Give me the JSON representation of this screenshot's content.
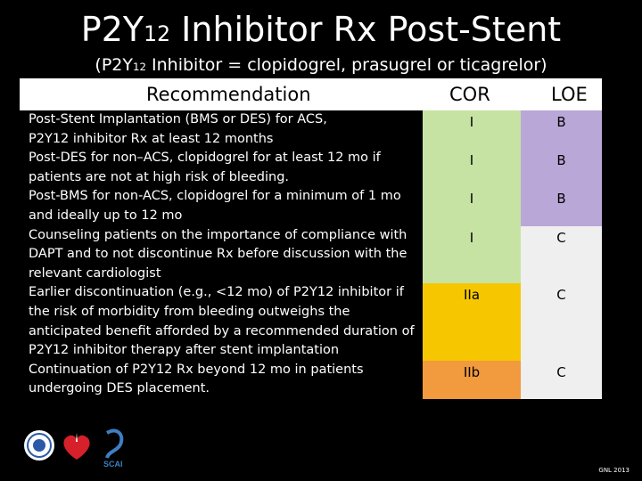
{
  "title": {
    "prefix": "P2Y",
    "sub": "12",
    "suffix": " Inhibitor Rx Post-Stent"
  },
  "subtitle": {
    "prefix": "(P2Y",
    "sub": "12",
    "suffix": " Inhibitor = clopidogrel, prasugrel or ticagrelor)"
  },
  "headers": {
    "recommendation": "Recommendation",
    "cor": "COR",
    "loe": "LOE"
  },
  "rows": [
    {
      "lines": [
        "Post-Stent Implantation (BMS or DES) for ACS,",
        "P2Y12  inhibitor Rx at least 12 months"
      ],
      "cor": "I",
      "loe": "B",
      "cor_color": "#c7e3a3",
      "loe_color": "#b9a7d7"
    },
    {
      "lines": [
        "Post-DES for non–ACS, clopidogrel for at least 12 mo if",
        "patients are not at high risk of bleeding."
      ],
      "cor": "I",
      "loe": "B",
      "cor_color": "#c7e3a3",
      "loe_color": "#b9a7d7"
    },
    {
      "lines": [
        "Post-BMS for non-ACS, clopidogrel for a minimum of 1 mo",
        "and ideally up to 12 mo"
      ],
      "cor": "I",
      "loe": "B",
      "cor_color": "#c7e3a3",
      "loe_color": "#b9a7d7"
    },
    {
      "lines": [
        "Counseling patients on the importance of compliance with",
        "DAPT and to not discontinue Rx before discussion with the",
        "relevant cardiologist"
      ],
      "cor": "I",
      "loe": "C",
      "cor_color": "#c7e3a3",
      "loe_color": "#efefef"
    },
    {
      "lines": [
        "Earlier discontinuation (e.g., <12 mo) of P2Y12 inhibitor if",
        "the risk of morbidity from bleeding outweighs the",
        "anticipated benefit afforded by a recommended duration of",
        "P2Y12 inhibitor therapy after stent implantation"
      ],
      "cor": "IIa",
      "loe": "C",
      "cor_color": "#f6c700",
      "loe_color": "#efefef"
    },
    {
      "lines": [
        "Continuation of P2Y12 Rx beyond 12 mo in patients",
        "undergoing DES placement."
      ],
      "cor": "IIb",
      "loe": "C",
      "cor_color": "#f19a3e",
      "loe_color": "#efefef"
    }
  ],
  "logos": [
    {
      "icon": "aha-circle-seal-icon"
    },
    {
      "icon": "heart-torch-icon"
    },
    {
      "icon": "scai-logo-icon"
    }
  ],
  "credit": "GNL 2013"
}
